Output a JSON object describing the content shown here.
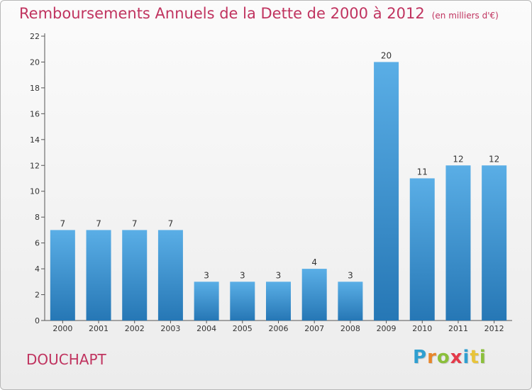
{
  "title": "Remboursements Annuels de la Dette de 2000 à 2012",
  "unit": "(en milliers d'€)",
  "commune": "DOUCHAPT",
  "logo": {
    "letters": [
      "P",
      "r",
      "o",
      "x",
      "i",
      "t",
      "i"
    ],
    "colors": [
      "#2f9fd0",
      "#e8862a",
      "#8bbf3b",
      "#e43a4a",
      "#2f9fd0",
      "#e8c43a",
      "#8bbf3b"
    ]
  },
  "chart_data": {
    "type": "bar",
    "title": "Remboursements Annuels de la Dette de 2000 à 2012",
    "categories": [
      "2000",
      "2001",
      "2002",
      "2003",
      "2004",
      "2005",
      "2006",
      "2007",
      "2008",
      "2009",
      "2010",
      "2011",
      "2012"
    ],
    "values": [
      7,
      7,
      7,
      7,
      3,
      3,
      3,
      4,
      3,
      20,
      11,
      12,
      12
    ],
    "data_labels": [
      "7",
      "7",
      "7",
      "7",
      "3",
      "3",
      "3",
      "4",
      "3",
      "20",
      "11",
      "12",
      "12"
    ],
    "ylim": [
      0,
      22
    ],
    "yticks": [
      0,
      2,
      4,
      6,
      8,
      10,
      12,
      14,
      16,
      18,
      20,
      22
    ],
    "grid": false,
    "bar_color_top": "#5aaee6",
    "bar_color_bottom": "#2677b5"
  }
}
